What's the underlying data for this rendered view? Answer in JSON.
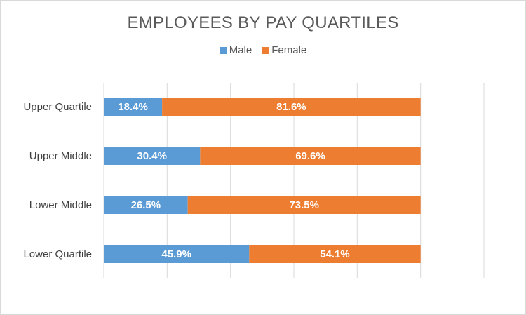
{
  "chart_data": {
    "type": "bar",
    "orientation": "horizontal",
    "stacked": "100%",
    "title": "EMPLOYEES BY PAY QUARTILES",
    "categories": [
      "Upper Quartile",
      "Upper Middle",
      "Lower Middle",
      "Lower Quartile"
    ],
    "series": [
      {
        "name": "Male",
        "color": "#5b9bd5",
        "values": [
          18.4,
          30.4,
          26.5,
          45.9
        ],
        "labels": [
          "18.4%",
          "30.4%",
          "26.5%",
          "45.9%"
        ]
      },
      {
        "name": "Female",
        "color": "#ed7d31",
        "values": [
          81.6,
          69.6,
          73.5,
          54.1
        ],
        "labels": [
          "81.6%",
          "69.6%",
          "73.5%",
          "54.1%"
        ]
      }
    ],
    "xlim": [
      0,
      120
    ],
    "grid": true,
    "legend_position": "top"
  }
}
